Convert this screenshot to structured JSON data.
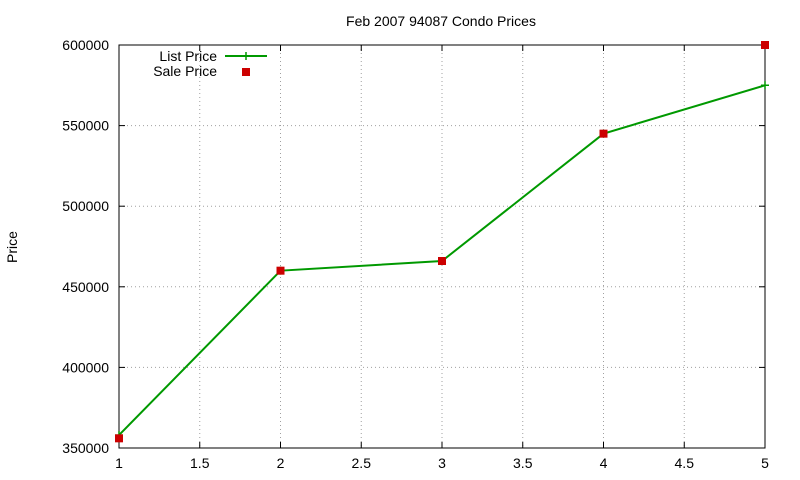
{
  "chart_data": {
    "type": "line",
    "title": "Feb 2007 94087 Condo Prices",
    "xlabel": "",
    "ylabel": "Price",
    "xlim": [
      1,
      5
    ],
    "ylim": [
      350000,
      600000
    ],
    "x_ticks": [
      "1",
      "1.5",
      "2",
      "2.5",
      "3",
      "3.5",
      "4",
      "4.5",
      "5"
    ],
    "y_ticks": [
      "350000",
      "400000",
      "450000",
      "500000",
      "550000",
      "600000"
    ],
    "grid": true,
    "legend_position": "top-left",
    "series": [
      {
        "name": "List Price",
        "style": "line+cross",
        "color": "#009900",
        "x": [
          1,
          2,
          3,
          4,
          5
        ],
        "y": [
          358000,
          460000,
          466000,
          545000,
          575000
        ]
      },
      {
        "name": "Sale Price",
        "style": "square-points",
        "color": "#cc0000",
        "x": [
          1,
          2,
          3,
          4,
          5
        ],
        "y": [
          356000,
          460000,
          466000,
          545000,
          600000
        ]
      }
    ]
  }
}
